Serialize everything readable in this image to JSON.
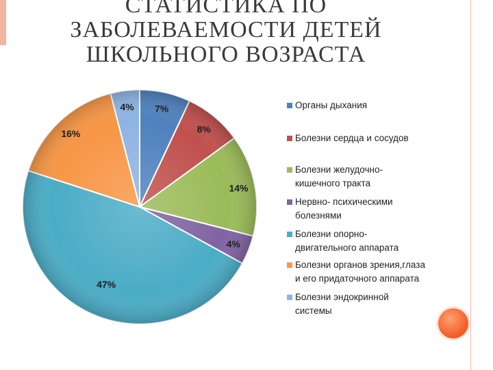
{
  "title_lines": [
    "СТАТИСТИКА ПО",
    "ЗАБОЛЕВАЕМОСТИ ДЕТЕЙ",
    "ШКОЛЬНОГО ВОЗРАСТА"
  ],
  "chart_data": {
    "type": "pie",
    "title": "СТАТИСТИКА ПО ЗАБОЛЕВАЕМОСТИ ДЕТЕЙ ШКОЛЬНОГО ВОЗРАСТА",
    "legend_position": "right",
    "slices": [
      {
        "name": "Органы дыхания",
        "legend_lines": [
          "Органы дыхания"
        ],
        "value": 7,
        "label": "7%",
        "color": "#4f81bd"
      },
      {
        "name": "Болезни сердца и сосудов",
        "legend_lines": [
          "Болезни сердца и сосудов"
        ],
        "value": 8,
        "label": "8%",
        "color": "#c0504d"
      },
      {
        "name": "Болезни желудочно-кишечного тракта",
        "legend_lines": [
          "Болезни желудочно-",
          "кишечного тракта"
        ],
        "value": 14,
        "label": "14%",
        "color": "#9bbb59"
      },
      {
        "name": "Нервно- психическими болезнями",
        "legend_lines": [
          "Нервно- психическими",
          "болезнями"
        ],
        "value": 4,
        "label": "4%",
        "color": "#8064a2"
      },
      {
        "name": "Болезни опорно-двигательного аппарата",
        "legend_lines": [
          "Болезни опорно-",
          "двигательного аппарата"
        ],
        "value": 47,
        "label": "47%",
        "color": "#4bacc6"
      },
      {
        "name": "Болезни органов зрения,глаза и его придаточного аппарата",
        "legend_lines": [
          "Болезни органов зрения,глаза",
          "и его придаточного аппарата"
        ],
        "value": 16,
        "label": "16%",
        "color": "#f79646"
      },
      {
        "name": "Болезни эндокринной системы",
        "legend_lines": [
          "Болезни эндокринной",
          "системы"
        ],
        "value": 4,
        "label": "4%",
        "color": "#8eb4e3"
      }
    ]
  }
}
